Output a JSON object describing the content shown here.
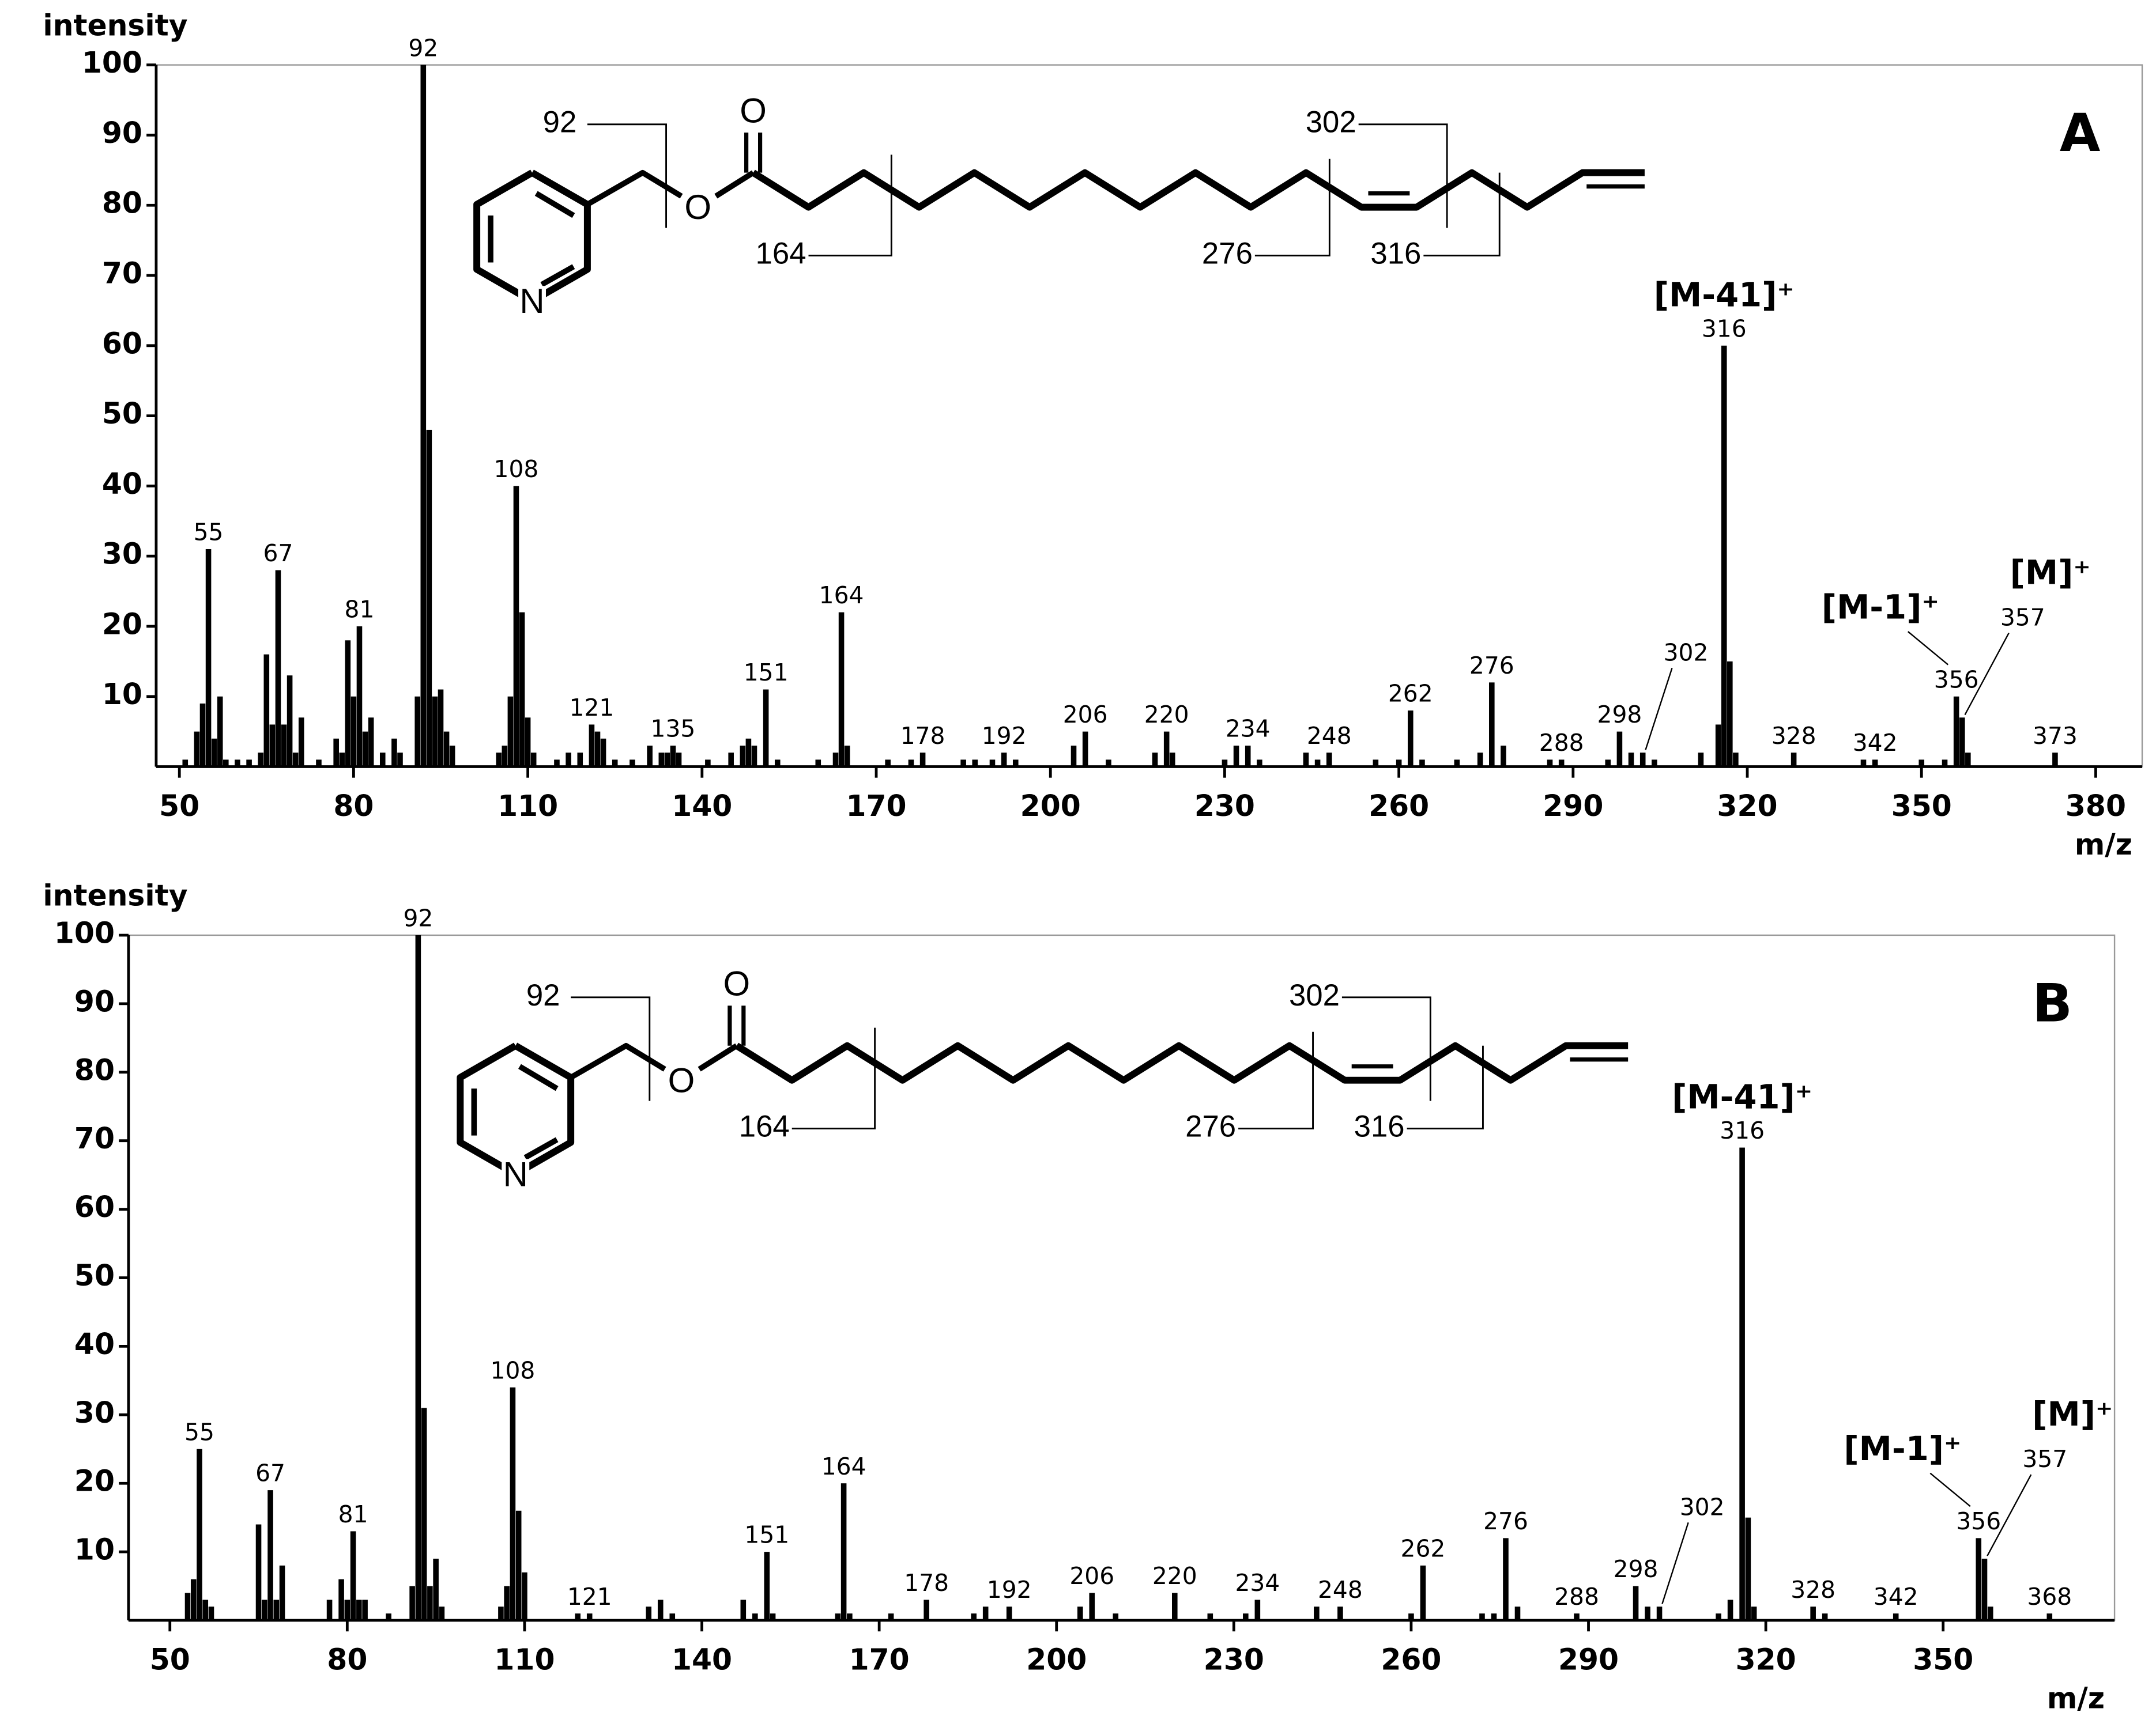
{
  "chart_data": [
    {
      "type": "bar",
      "panel_label": "A",
      "y_label": "intensity",
      "x_label": "m/z",
      "color": "#000000",
      "xlim": [
        46,
        388
      ],
      "ylim": [
        0,
        100
      ],
      "xticks": [
        50,
        80,
        110,
        140,
        170,
        200,
        230,
        260,
        290,
        320,
        350,
        380
      ],
      "yticks": [
        10,
        20,
        30,
        40,
        50,
        60,
        70,
        80,
        90,
        100
      ],
      "x": [
        51,
        53,
        54,
        55,
        56,
        57,
        58,
        60,
        62,
        64,
        65,
        66,
        67,
        68,
        69,
        70,
        71,
        74,
        77,
        78,
        79,
        80,
        81,
        82,
        83,
        85,
        87,
        88,
        91,
        92,
        93,
        94,
        95,
        96,
        97,
        105,
        106,
        107,
        108,
        109,
        110,
        111,
        115,
        117,
        119,
        121,
        122,
        123,
        125,
        128,
        131,
        133,
        134,
        135,
        136,
        141,
        145,
        147,
        148,
        149,
        151,
        153,
        160,
        163,
        164,
        165,
        172,
        176,
        178,
        185,
        187,
        190,
        192,
        194,
        204,
        206,
        210,
        218,
        220,
        221,
        230,
        232,
        234,
        236,
        244,
        246,
        248,
        256,
        260,
        262,
        264,
        270,
        274,
        276,
        278,
        286,
        288,
        296,
        298,
        300,
        302,
        304,
        312,
        315,
        316,
        317,
        318,
        328,
        340,
        342,
        350,
        354,
        356,
        357,
        358,
        373
      ],
      "values": [
        1,
        5,
        9,
        31,
        4,
        10,
        1,
        1,
        1,
        2,
        16,
        6,
        28,
        6,
        13,
        2,
        7,
        1,
        4,
        2,
        18,
        10,
        20,
        5,
        7,
        2,
        4,
        2,
        10,
        100,
        48,
        10,
        11,
        5,
        3,
        2,
        3,
        10,
        40,
        22,
        7,
        2,
        1,
        2,
        2,
        6,
        5,
        4,
        1,
        1,
        3,
        2,
        2,
        3,
        2,
        1,
        2,
        3,
        4,
        3,
        11,
        1,
        1,
        2,
        22,
        3,
        1,
        1,
        2,
        1,
        1,
        1,
        2,
        1,
        3,
        5,
        1,
        2,
        5,
        2,
        1,
        3,
        3,
        1,
        2,
        1,
        2,
        1,
        1,
        8,
        1,
        1,
        2,
        12,
        3,
        1,
        1,
        1,
        5,
        2,
        2,
        1,
        2,
        6,
        60,
        15,
        2,
        2,
        1,
        1,
        1,
        1,
        10,
        7,
        2,
        2
      ],
      "peak_labels": [
        55,
        67,
        81,
        92,
        108,
        121,
        135,
        151,
        164,
        178,
        192,
        206,
        220,
        234,
        248,
        262,
        276,
        288,
        298,
        302,
        316,
        328,
        342,
        356,
        357,
        373
      ],
      "annotations": [
        {
          "text": "[M-41]⁺",
          "x": 316
        },
        {
          "text": "[M-1]⁺",
          "x": 356
        },
        {
          "text": "[M]⁺",
          "x": 357
        }
      ],
      "structure": {
        "fragments": [
          "92",
          "164",
          "276",
          "302",
          "316"
        ],
        "atoms": [
          "O",
          "O",
          "N"
        ]
      }
    },
    {
      "type": "bar",
      "panel_label": "B",
      "y_label": "intensity",
      "x_label": "m/z",
      "color": "#000000",
      "xlim": [
        43,
        379
      ],
      "ylim": [
        0,
        100
      ],
      "xticks": [
        50,
        80,
        110,
        140,
        170,
        200,
        230,
        260,
        290,
        320,
        350
      ],
      "yticks": [
        10,
        20,
        30,
        40,
        50,
        60,
        70,
        80,
        90,
        100
      ],
      "x": [
        53,
        54,
        55,
        56,
        57,
        65,
        66,
        67,
        68,
        69,
        77,
        79,
        80,
        81,
        82,
        83,
        87,
        91,
        92,
        93,
        94,
        95,
        96,
        106,
        107,
        108,
        109,
        110,
        119,
        121,
        131,
        133,
        135,
        147,
        149,
        151,
        152,
        163,
        164,
        165,
        172,
        178,
        186,
        188,
        192,
        204,
        206,
        210,
        220,
        226,
        232,
        234,
        244,
        248,
        260,
        262,
        272,
        274,
        276,
        278,
        288,
        298,
        300,
        302,
        312,
        314,
        316,
        317,
        318,
        328,
        330,
        342,
        356,
        357,
        358,
        368
      ],
      "values": [
        4,
        6,
        25,
        3,
        2,
        14,
        3,
        19,
        3,
        8,
        3,
        6,
        3,
        13,
        3,
        3,
        1,
        5,
        100,
        31,
        5,
        9,
        2,
        2,
        5,
        34,
        16,
        7,
        1,
        1,
        2,
        3,
        1,
        3,
        1,
        10,
        1,
        1,
        20,
        1,
        1,
        3,
        1,
        2,
        2,
        2,
        4,
        1,
        4,
        1,
        1,
        3,
        2,
        2,
        1,
        8,
        1,
        1,
        12,
        2,
        1,
        5,
        2,
        2,
        1,
        3,
        69,
        15,
        2,
        2,
        1,
        1,
        12,
        9,
        2,
        1
      ],
      "peak_labels": [
        55,
        67,
        81,
        92,
        108,
        121,
        151,
        164,
        178,
        192,
        206,
        220,
        234,
        248,
        262,
        276,
        288,
        298,
        302,
        316,
        328,
        342,
        356,
        357,
        368
      ],
      "annotations": [
        {
          "text": "[M-41]⁺",
          "x": 316
        },
        {
          "text": "[M-1]⁺",
          "x": 356
        },
        {
          "text": "[M]⁺",
          "x": 357
        }
      ],
      "structure": {
        "fragments": [
          "92",
          "164",
          "276",
          "302",
          "316"
        ],
        "atoms": [
          "O",
          "O",
          "N"
        ]
      }
    }
  ]
}
